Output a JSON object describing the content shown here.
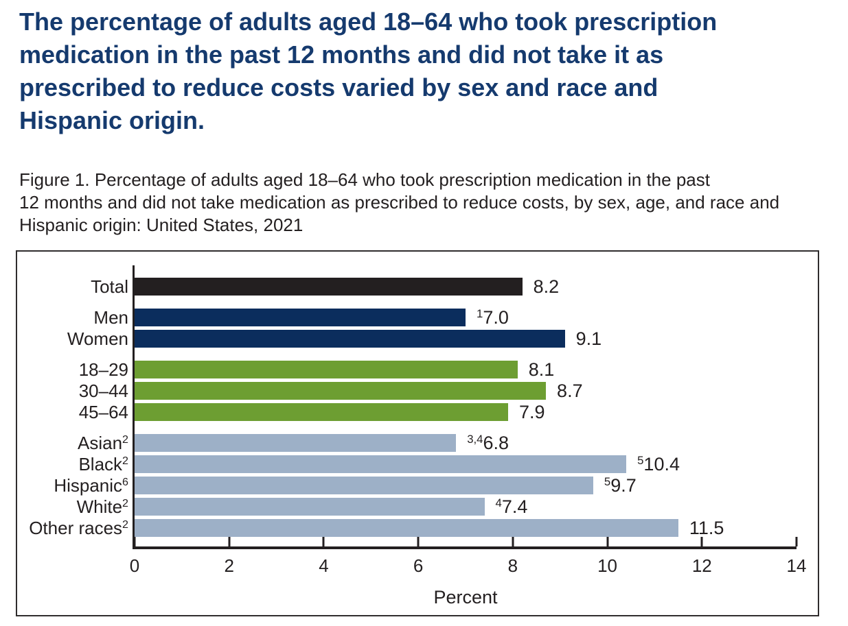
{
  "page": {
    "title": "The percentage of adults aged 18–64 who took prescription\nmedication in the past 12 months and did not take it as\nprescribed to reduce costs varied by sex and race and\nHispanic origin.",
    "caption": "Figure 1. Percentage of adults aged 18–64 who took prescription medication in the past\n12 months and did not take medication as prescribed to reduce costs, by sex, age, and race and\nHispanic origin: United States, 2021"
  },
  "colors": {
    "title_text": "#153a6e",
    "body_text": "#231f20",
    "axis": "#231f20",
    "figure_border": "#2f2c2d",
    "bar_total": "#231f20",
    "bar_sex": "#0b2d5d",
    "bar_age": "#6d9e32",
    "bar_race": "#9db0c7"
  },
  "chart_data": {
    "type": "bar",
    "orientation": "horizontal",
    "title": "Figure 1. Percentage of adults aged 18–64 who took prescription medication in the past 12 months and did not take medication as prescribed to reduce costs, by sex, age, and race and Hispanic origin: United States, 2021",
    "xlabel": "Percent",
    "xlim": [
      0,
      14
    ],
    "xticks": [
      0,
      2,
      4,
      6,
      8,
      10,
      12,
      14
    ],
    "grid": false,
    "legend": false,
    "groups": [
      {
        "name": "total",
        "color_key": "bar_total",
        "rows": [
          {
            "label": "Total",
            "label_sup": "",
            "value": 8.2,
            "value_sup": "",
            "display": "8.2"
          }
        ]
      },
      {
        "name": "sex",
        "color_key": "bar_sex",
        "rows": [
          {
            "label": "Men",
            "label_sup": "",
            "value": 7.0,
            "value_sup": "1",
            "display": "7.0"
          },
          {
            "label": "Women",
            "label_sup": "",
            "value": 9.1,
            "value_sup": "",
            "display": "9.1"
          }
        ]
      },
      {
        "name": "age",
        "color_key": "bar_age",
        "rows": [
          {
            "label": "18–29",
            "label_sup": "",
            "value": 8.1,
            "value_sup": "",
            "display": "8.1"
          },
          {
            "label": "30–44",
            "label_sup": "",
            "value": 8.7,
            "value_sup": "",
            "display": "8.7"
          },
          {
            "label": "45–64",
            "label_sup": "",
            "value": 7.9,
            "value_sup": "",
            "display": "7.9"
          }
        ]
      },
      {
        "name": "race",
        "color_key": "bar_race",
        "rows": [
          {
            "label": "Asian",
            "label_sup": "2",
            "value": 6.8,
            "value_sup": "3,4",
            "display": "6.8"
          },
          {
            "label": "Black",
            "label_sup": "2",
            "value": 10.4,
            "value_sup": "5",
            "display": "10.4"
          },
          {
            "label": "Hispanic",
            "label_sup": "6",
            "value": 9.7,
            "value_sup": "5",
            "display": "9.7"
          },
          {
            "label": "White",
            "label_sup": "2",
            "value": 7.4,
            "value_sup": "4",
            "display": "7.4"
          },
          {
            "label": "Other races",
            "label_sup": "2",
            "value": 11.5,
            "value_sup": "",
            "display": "11.5"
          }
        ]
      }
    ]
  }
}
